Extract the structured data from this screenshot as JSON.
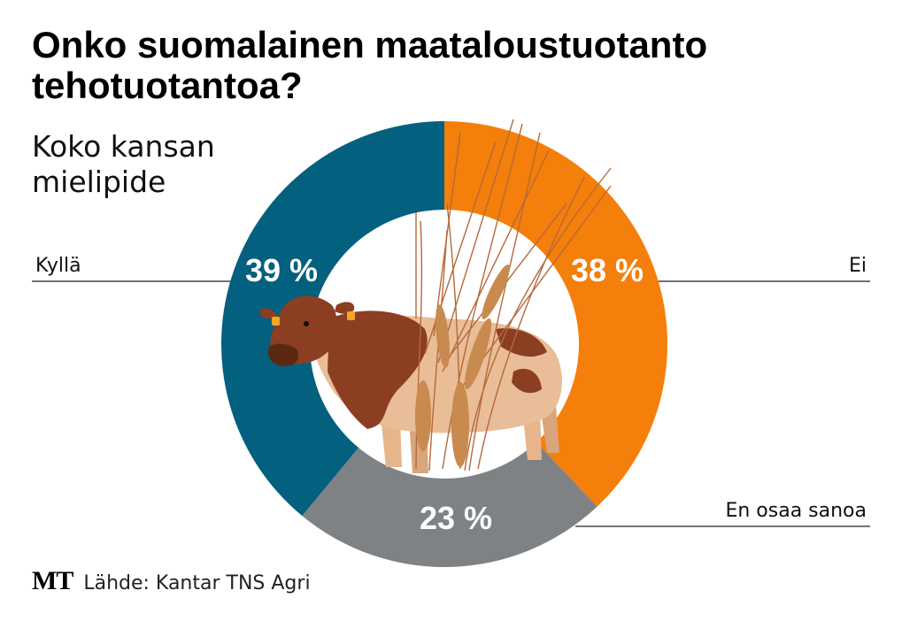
{
  "title": "Onko suomalainen maataloustuotanto tehotuotantoa?",
  "subtitle": "Koko kansan mielipide",
  "source": {
    "logo": "MT",
    "text": "Lähde: Kantar TNS Agri"
  },
  "colors": {
    "kylla": "#03607E",
    "ei": "#F57F0B",
    "en_osaa_sanoa": "#7E8284",
    "inner": "#FFFFFF"
  },
  "illustration": [
    "cow-icon",
    "wheat-icon"
  ],
  "chart_data": {
    "type": "pie",
    "donut": true,
    "slices": [
      {
        "label": "Kyllä",
        "value": 39,
        "value_label": "39 %"
      },
      {
        "label": "Ei",
        "value": 38,
        "value_label": "38 %"
      },
      {
        "label": "En osaa sanoa",
        "value": 23,
        "value_label": "23 %"
      }
    ]
  }
}
